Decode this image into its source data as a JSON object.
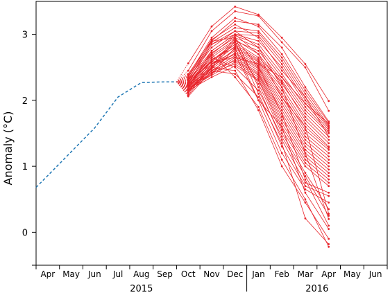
{
  "chart_data": {
    "type": "line",
    "ylabel": "Anomaly (°C)",
    "ylim": [
      -0.5,
      3.5
    ],
    "yticks": [
      0,
      1,
      2,
      3
    ],
    "xlim": [
      -0.5,
      14.5
    ],
    "months": [
      "Apr",
      "May",
      "Jun",
      "Jul",
      "Aug",
      "Sep",
      "Oct",
      "Nov",
      "Dec",
      "Jan",
      "Feb",
      "Mar",
      "Apr",
      "May",
      "Jun"
    ],
    "years": [
      {
        "label": "2015",
        "from": 0,
        "to": 8
      },
      {
        "label": "2016",
        "from": 9,
        "to": 14
      }
    ],
    "grid": false,
    "colors": {
      "observed": "#1f77b4",
      "forecast": "#e8232a"
    },
    "observed": {
      "style": "dashed",
      "x": [
        -0.5,
        0,
        1,
        2,
        3,
        4,
        5,
        5.5
      ],
      "y": [
        0.68,
        0.86,
        1.22,
        1.58,
        2.05,
        2.27,
        2.28,
        2.28
      ]
    },
    "forecast_start": {
      "x": 5.5,
      "y": 2.28
    },
    "forecast_x": [
      6,
      7,
      8,
      9,
      10,
      11,
      12
    ],
    "forecast": [
      [
        2.56,
        3.12,
        3.42,
        3.3,
        2.95,
        2.55,
        1.99
      ],
      [
        2.45,
        3.05,
        3.35,
        3.28,
        2.88,
        2.5,
        1.84
      ],
      [
        2.4,
        2.9,
        3.2,
        3.15,
        2.8,
        2.2,
        1.68
      ],
      [
        2.38,
        2.95,
        3.25,
        3.12,
        2.7,
        2.15,
        1.66
      ],
      [
        2.35,
        2.88,
        3.1,
        3.05,
        2.65,
        2.1,
        1.62
      ],
      [
        2.33,
        2.8,
        3.05,
        3.02,
        2.6,
        2.05,
        1.6
      ],
      [
        2.32,
        2.85,
        3.0,
        2.98,
        2.55,
        2.0,
        1.58
      ],
      [
        2.3,
        2.75,
        3.0,
        2.9,
        2.5,
        1.95,
        1.55
      ],
      [
        2.3,
        2.7,
        2.98,
        2.85,
        2.4,
        1.9,
        1.52
      ],
      [
        2.28,
        2.72,
        2.95,
        2.8,
        2.35,
        1.85,
        1.5
      ],
      [
        2.27,
        2.65,
        2.9,
        2.75,
        2.3,
        1.8,
        1.45
      ],
      [
        2.26,
        2.68,
        2.92,
        2.7,
        2.25,
        1.75,
        1.4
      ],
      [
        2.25,
        2.6,
        2.88,
        2.65,
        2.28,
        1.7,
        1.35
      ],
      [
        2.25,
        2.58,
        2.85,
        2.62,
        2.2,
        1.65,
        1.3
      ],
      [
        2.24,
        2.55,
        2.82,
        2.6,
        2.15,
        1.6,
        1.28
      ],
      [
        2.23,
        2.62,
        2.8,
        2.58,
        2.1,
        1.55,
        1.25
      ],
      [
        2.22,
        2.5,
        2.78,
        2.55,
        2.05,
        1.5,
        1.2
      ],
      [
        2.22,
        2.55,
        2.75,
        2.52,
        2.0,
        1.45,
        1.15
      ],
      [
        2.21,
        2.48,
        2.72,
        2.5,
        1.95,
        1.4,
        1.1
      ],
      [
        2.2,
        2.52,
        2.7,
        2.48,
        1.9,
        1.35,
        1.05
      ],
      [
        2.2,
        2.45,
        2.68,
        2.45,
        1.85,
        1.3,
        1.0
      ],
      [
        2.19,
        2.42,
        2.65,
        2.42,
        1.8,
        1.25,
        0.95
      ],
      [
        2.18,
        2.4,
        2.62,
        2.4,
        1.75,
        1.2,
        0.9
      ],
      [
        2.18,
        2.45,
        2.6,
        2.38,
        1.7,
        1.15,
        0.85
      ],
      [
        2.17,
        2.38,
        2.58,
        2.35,
        1.65,
        1.1,
        0.8
      ],
      [
        2.16,
        2.42,
        2.55,
        2.32,
        1.6,
        1.05,
        0.75
      ],
      [
        2.15,
        2.35,
        2.52,
        2.3,
        1.55,
        1.0,
        0.7
      ],
      [
        2.15,
        2.5,
        2.95,
        2.2,
        1.4,
        0.75,
        0.6
      ],
      [
        2.14,
        2.48,
        2.9,
        2.1,
        1.3,
        0.7,
        0.55
      ],
      [
        2.13,
        2.4,
        2.8,
        2.0,
        1.2,
        0.65,
        0.45
      ],
      [
        2.12,
        2.6,
        2.85,
        2.25,
        1.5,
        0.9,
        0.35
      ],
      [
        2.2,
        2.75,
        3.0,
        2.7,
        2.05,
        1.6,
        0.28
      ],
      [
        2.25,
        2.85,
        3.05,
        2.8,
        2.2,
        1.2,
        0.2
      ],
      [
        2.3,
        2.9,
        2.95,
        2.5,
        1.8,
        0.8,
        0.1
      ],
      [
        2.1,
        2.55,
        2.7,
        2.0,
        1.6,
        0.6,
        0.05
      ],
      [
        2.08,
        2.5,
        2.45,
        1.85,
        1.0,
        0.45,
        -0.1
      ],
      [
        2.06,
        2.45,
        2.4,
        2.05,
        1.35,
        0.21,
        -0.18
      ],
      [
        2.18,
        2.7,
        2.35,
        1.9,
        1.1,
        0.5,
        -0.22
      ],
      [
        2.24,
        2.65,
        2.5,
        2.15,
        1.45,
        0.85,
        0.25
      ],
      [
        2.28,
        2.58,
        2.65,
        2.55,
        2.35,
        1.95,
        1.65
      ],
      [
        2.36,
        2.92,
        3.15,
        2.95,
        2.45,
        2.05,
        1.45
      ]
    ]
  }
}
